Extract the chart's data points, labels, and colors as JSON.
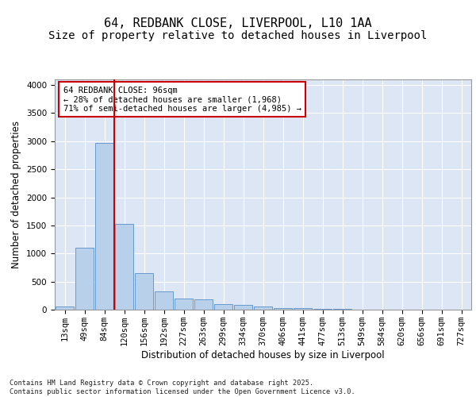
{
  "title_line1": "64, REDBANK CLOSE, LIVERPOOL, L10 1AA",
  "title_line2": "Size of property relative to detached houses in Liverpool",
  "xlabel": "Distribution of detached houses by size in Liverpool",
  "ylabel": "Number of detached properties",
  "categories": [
    "13sqm",
    "49sqm",
    "84sqm",
    "120sqm",
    "156sqm",
    "192sqm",
    "227sqm",
    "263sqm",
    "299sqm",
    "334sqm",
    "370sqm",
    "406sqm",
    "441sqm",
    "477sqm",
    "513sqm",
    "549sqm",
    "584sqm",
    "620sqm",
    "656sqm",
    "691sqm",
    "727sqm"
  ],
  "values": [
    55,
    1100,
    2970,
    1530,
    650,
    330,
    200,
    190,
    100,
    80,
    55,
    25,
    25,
    15,
    10,
    5,
    5,
    0,
    0,
    0,
    0
  ],
  "bar_color": "#b8d0ea",
  "bar_edge_color": "#6699cc",
  "background_color": "#dce6f5",
  "grid_color": "#ffffff",
  "vline_x": 2.5,
  "vline_color": "#cc0000",
  "annotation_text": "64 REDBANK CLOSE: 96sqm\n← 28% of detached houses are smaller (1,968)\n71% of semi-detached houses are larger (4,985) →",
  "annotation_box_color": "#cc0000",
  "ylim": [
    0,
    4100
  ],
  "yticks": [
    0,
    500,
    1000,
    1500,
    2000,
    2500,
    3000,
    3500,
    4000
  ],
  "footnote": "Contains HM Land Registry data © Crown copyright and database right 2025.\nContains public sector information licensed under the Open Government Licence v3.0.",
  "title_fontsize": 11,
  "subtitle_fontsize": 10,
  "axis_label_fontsize": 8.5,
  "tick_fontsize": 7.5,
  "fig_bg": "#ffffff"
}
